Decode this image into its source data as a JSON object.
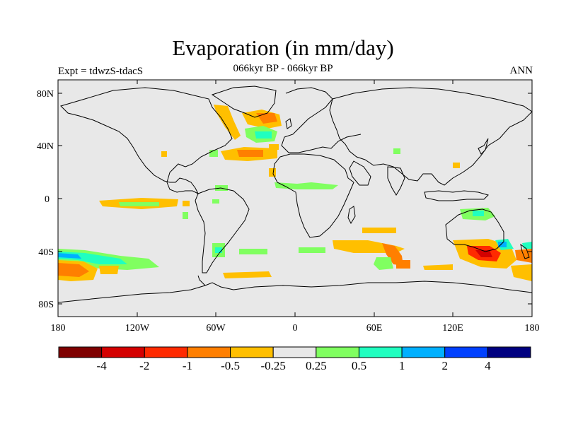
{
  "title": "Evaporation (in mm/day)",
  "subtitle_left": "Expt = tdwzS-tdacS",
  "subtitle_center": "066kyr BP - 066kyr BP",
  "subtitle_right": "ANN",
  "lat_ticks": [
    "80N",
    "40N",
    "0",
    "40S",
    "80S"
  ],
  "lon_ticks": [
    "180",
    "120W",
    "60W",
    "0",
    "60E",
    "120E",
    "180"
  ],
  "colorbar": {
    "colors": [
      "#7f0000",
      "#d40000",
      "#ff2a00",
      "#ff7f00",
      "#ffbf00",
      "#e8e8e8",
      "#80ff60",
      "#20ffc0",
      "#00b0ff",
      "#0040ff",
      "#000080"
    ],
    "labels": [
      "-4",
      "-2",
      "-1",
      "-0.5",
      "-0.25",
      "0.25",
      "0.5",
      "1",
      "2",
      "4"
    ]
  },
  "colors": {
    "ocean_background": "#e8e8e8",
    "coastline": "#000000"
  }
}
